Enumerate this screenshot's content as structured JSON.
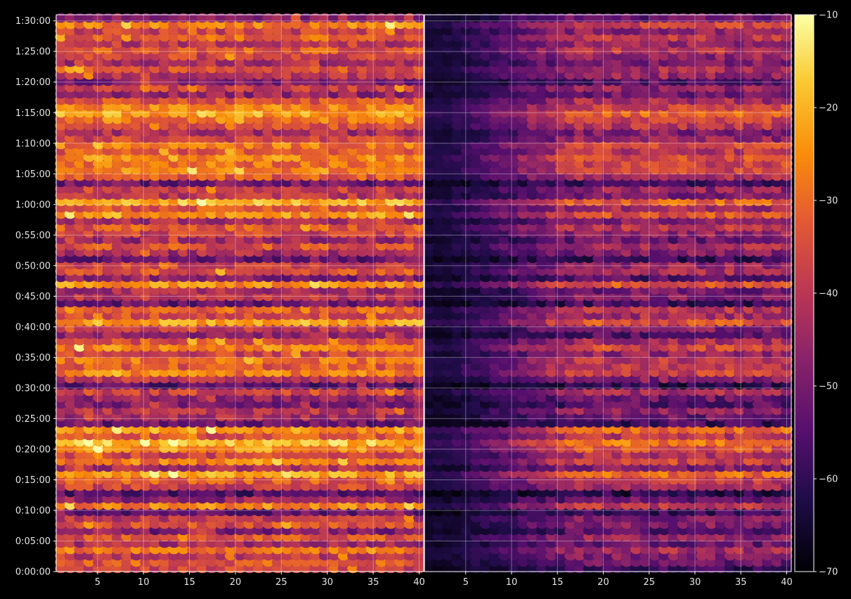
{
  "chart_data": {
    "type": "heatmap",
    "colormap": "inferno",
    "background": "#000000",
    "grid": true,
    "panels": [
      {
        "x_range": [
          1,
          40
        ],
        "x_ticks": [
          "5",
          "10",
          "15",
          "20",
          "25",
          "30",
          "35",
          "40"
        ]
      },
      {
        "x_range": [
          1,
          40
        ],
        "x_ticks": [
          "5",
          "10",
          "15",
          "20",
          "25",
          "30",
          "35",
          "40"
        ]
      }
    ],
    "y_range_seconds": [
      0,
      5460
    ],
    "y_ticks": [
      "0:00:00",
      "0:05:00",
      "0:10:00",
      "0:15:00",
      "0:20:00",
      "0:25:00",
      "0:30:00",
      "0:35:00",
      "0:40:00",
      "0:45:00",
      "0:50:00",
      "0:55:00",
      "1:00:00",
      "1:05:00",
      "1:10:00",
      "1:15:00",
      "1:20:00",
      "1:25:00",
      "1:30:00"
    ],
    "colorbar": {
      "range": [
        -70,
        -10
      ],
      "ticks": [
        "−70",
        "−60",
        "−50",
        "−40",
        "−30",
        "−20",
        "−10"
      ]
    },
    "row_intensity_note_free": true,
    "rows_left": [
      0.55,
      0.62,
      0.5,
      0.7,
      0.45,
      0.6,
      0.35,
      0.58,
      0.5,
      0.3,
      0.72,
      0.4,
      0.25,
      0.55,
      0.62,
      0.8,
      0.45,
      0.7,
      0.55,
      0.75,
      0.85,
      0.6,
      0.78,
      0.3,
      0.45,
      0.5,
      0.35,
      0.4,
      0.55,
      0.25,
      0.5,
      0.7,
      0.62,
      0.68,
      0.55,
      0.72,
      0.6,
      0.4,
      0.5,
      0.8,
      0.58,
      0.65,
      0.3,
      0.5,
      0.45,
      0.75,
      0.35,
      0.6,
      0.55,
      0.3,
      0.45,
      0.6,
      0.42,
      0.55,
      0.62,
      0.45,
      0.78,
      0.6,
      0.82,
      0.5,
      0.55,
      0.3,
      0.62,
      0.72,
      0.68,
      0.75,
      0.62,
      0.7,
      0.55,
      0.45,
      0.62,
      0.7,
      0.8,
      0.72,
      0.58,
      0.4,
      0.55,
      0.35,
      0.5,
      0.6,
      0.45,
      0.55,
      0.62,
      0.5,
      0.65,
      0.55,
      0.72,
      0.4
    ],
    "rows_right": [
      0.2,
      0.3,
      0.35,
      0.45,
      0.3,
      0.4,
      0.25,
      0.35,
      0.35,
      0.2,
      0.5,
      0.3,
      0.15,
      0.45,
      0.5,
      0.65,
      0.35,
      0.55,
      0.45,
      0.6,
      0.7,
      0.5,
      0.65,
      0.2,
      0.3,
      0.4,
      0.25,
      0.3,
      0.45,
      0.15,
      0.35,
      0.55,
      0.5,
      0.5,
      0.4,
      0.55,
      0.45,
      0.25,
      0.35,
      0.6,
      0.45,
      0.5,
      0.2,
      0.35,
      0.3,
      0.6,
      0.25,
      0.45,
      0.4,
      0.2,
      0.35,
      0.45,
      0.3,
      0.4,
      0.5,
      0.35,
      0.6,
      0.45,
      0.65,
      0.35,
      0.4,
      0.2,
      0.45,
      0.55,
      0.55,
      0.6,
      0.5,
      0.55,
      0.4,
      0.35,
      0.5,
      0.55,
      0.65,
      0.55,
      0.45,
      0.3,
      0.4,
      0.25,
      0.4,
      0.45,
      0.35,
      0.4,
      0.5,
      0.4,
      0.5,
      0.4,
      0.55,
      0.3
    ]
  }
}
